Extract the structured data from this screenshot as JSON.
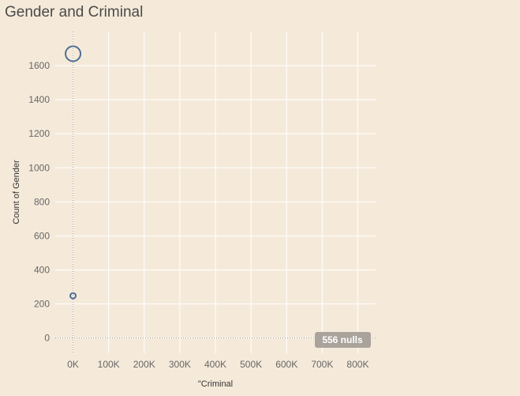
{
  "chart_data": {
    "type": "scatter",
    "title": "Gender and Criminal",
    "xlabel": "\"Criminal",
    "ylabel": "Count of Gender",
    "x_ticks": [
      "0K",
      "100K",
      "200K",
      "300K",
      "400K",
      "500K",
      "600K",
      "700K",
      "800K"
    ],
    "y_ticks": [
      "0",
      "200",
      "400",
      "600",
      "800",
      "1000",
      "1200",
      "1400",
      "1600"
    ],
    "xlim": [
      -50000,
      850000
    ],
    "ylim": [
      -90,
      1800
    ],
    "grid": true,
    "points": [
      {
        "x": 0,
        "y": 1670,
        "size": "large"
      },
      {
        "x": 0,
        "y": 248,
        "size": "small"
      }
    ],
    "null_badge": "556 nulls",
    "colors": {
      "background": "#f5eada",
      "marker": "#4e6e95",
      "grid": "#ffffff",
      "badge": "#a9a39b"
    }
  }
}
